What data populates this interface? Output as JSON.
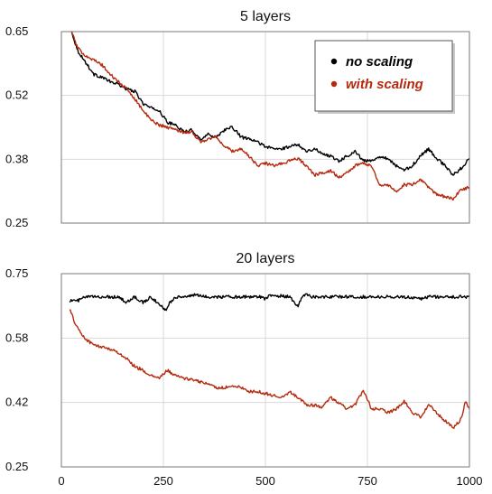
{
  "chart_data": [
    {
      "type": "line",
      "title": "5 layers",
      "xlim": [
        0,
        1000
      ],
      "ylim": [
        0.25,
        0.65
      ],
      "yticks": [
        "0.65",
        "0.52",
        "0.38",
        "0.25"
      ],
      "xticks": [],
      "grid": true,
      "legend": {
        "placement": "top-right",
        "entries": [
          "no scaling",
          "with scaling"
        ]
      },
      "series": [
        {
          "name": "no scaling",
          "color": "#000000",
          "x": [
            25,
            40,
            60,
            80,
            100,
            120,
            140,
            160,
            180,
            200,
            220,
            240,
            260,
            280,
            300,
            320,
            340,
            360,
            380,
            400,
            420,
            440,
            460,
            480,
            500,
            520,
            540,
            560,
            580,
            600,
            620,
            640,
            660,
            680,
            700,
            720,
            740,
            760,
            780,
            800,
            820,
            840,
            860,
            880,
            900,
            920,
            940,
            960,
            980,
            1000
          ],
          "values": [
            0.65,
            0.61,
            0.585,
            0.56,
            0.555,
            0.545,
            0.54,
            0.53,
            0.525,
            0.5,
            0.49,
            0.485,
            0.46,
            0.455,
            0.44,
            0.445,
            0.425,
            0.435,
            0.43,
            0.445,
            0.45,
            0.43,
            0.425,
            0.42,
            0.41,
            0.405,
            0.405,
            0.41,
            0.415,
            0.4,
            0.405,
            0.395,
            0.39,
            0.38,
            0.39,
            0.4,
            0.38,
            0.38,
            0.39,
            0.385,
            0.37,
            0.36,
            0.37,
            0.39,
            0.405,
            0.385,
            0.37,
            0.35,
            0.365,
            0.385
          ]
        },
        {
          "name": "with scaling",
          "color": "#b52a0e",
          "x": [
            25,
            40,
            60,
            80,
            100,
            120,
            140,
            160,
            180,
            200,
            220,
            240,
            260,
            280,
            300,
            320,
            340,
            360,
            380,
            400,
            420,
            440,
            460,
            480,
            500,
            520,
            540,
            560,
            580,
            600,
            620,
            640,
            660,
            680,
            700,
            720,
            740,
            760,
            780,
            800,
            820,
            840,
            860,
            880,
            900,
            920,
            940,
            960,
            980,
            1000
          ],
          "values": [
            0.65,
            0.615,
            0.6,
            0.59,
            0.58,
            0.56,
            0.545,
            0.53,
            0.51,
            0.485,
            0.465,
            0.455,
            0.45,
            0.445,
            0.44,
            0.44,
            0.42,
            0.425,
            0.43,
            0.41,
            0.4,
            0.405,
            0.39,
            0.37,
            0.375,
            0.37,
            0.375,
            0.38,
            0.385,
            0.37,
            0.35,
            0.355,
            0.36,
            0.345,
            0.355,
            0.37,
            0.375,
            0.37,
            0.33,
            0.33,
            0.315,
            0.33,
            0.33,
            0.34,
            0.325,
            0.31,
            0.305,
            0.3,
            0.32,
            0.325
          ]
        }
      ]
    },
    {
      "type": "line",
      "title": "20 layers",
      "xlim": [
        0,
        1000
      ],
      "ylim": [
        0.25,
        0.75
      ],
      "yticks": [
        "0.75",
        "0.58",
        "0.42",
        "0.25"
      ],
      "xticks": [
        "0",
        "250",
        "500",
        "750",
        "1000"
      ],
      "grid": true,
      "series": [
        {
          "name": "no scaling",
          "color": "#000000",
          "x": [
            20,
            40,
            60,
            100,
            140,
            160,
            180,
            200,
            220,
            250,
            255,
            265,
            280,
            300,
            330,
            350,
            400,
            450,
            490,
            500,
            510,
            560,
            580,
            590,
            600,
            610,
            650,
            700,
            750,
            800,
            850,
            880,
            900,
            950,
            1000
          ],
          "values": [
            0.68,
            0.68,
            0.69,
            0.69,
            0.69,
            0.675,
            0.69,
            0.675,
            0.69,
            0.66,
            0.655,
            0.675,
            0.69,
            0.69,
            0.695,
            0.69,
            0.69,
            0.69,
            0.69,
            0.685,
            0.695,
            0.69,
            0.665,
            0.69,
            0.7,
            0.69,
            0.69,
            0.69,
            0.69,
            0.69,
            0.69,
            0.685,
            0.69,
            0.69,
            0.69
          ]
        },
        {
          "name": "with scaling",
          "color": "#b52a0e",
          "x": [
            20,
            30,
            45,
            60,
            80,
            100,
            120,
            140,
            160,
            180,
            200,
            220,
            240,
            260,
            280,
            300,
            320,
            340,
            360,
            380,
            400,
            420,
            440,
            460,
            480,
            500,
            520,
            540,
            560,
            580,
            600,
            620,
            640,
            660,
            680,
            700,
            720,
            740,
            760,
            780,
            800,
            820,
            840,
            860,
            880,
            900,
            920,
            940,
            960,
            980,
            990,
            1000
          ],
          "values": [
            0.66,
            0.63,
            0.6,
            0.58,
            0.565,
            0.56,
            0.555,
            0.545,
            0.53,
            0.51,
            0.5,
            0.485,
            0.48,
            0.5,
            0.485,
            0.48,
            0.475,
            0.47,
            0.465,
            0.455,
            0.455,
            0.46,
            0.455,
            0.445,
            0.445,
            0.44,
            0.435,
            0.43,
            0.445,
            0.43,
            0.41,
            0.41,
            0.405,
            0.43,
            0.415,
            0.4,
            0.41,
            0.45,
            0.4,
            0.4,
            0.39,
            0.4,
            0.42,
            0.39,
            0.38,
            0.41,
            0.39,
            0.37,
            0.35,
            0.375,
            0.42,
            0.4
          ]
        }
      ]
    }
  ]
}
